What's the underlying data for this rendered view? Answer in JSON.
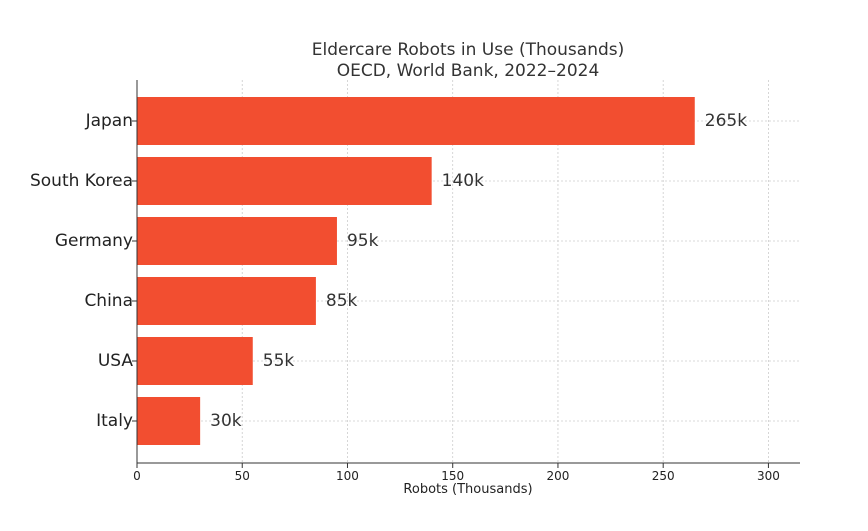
{
  "chart_data": {
    "type": "bar",
    "orientation": "horizontal",
    "title": "Eldercare Robots in Use (Thousands)",
    "subtitle": "OECD, World Bank, 2022–2024",
    "xlabel": "Robots (Thousands)",
    "ylabel": "",
    "categories": [
      "Japan",
      "South Korea",
      "Germany",
      "China",
      "USA",
      "Italy"
    ],
    "values": [
      265,
      140,
      95,
      85,
      55,
      30
    ],
    "data_labels": [
      "265k",
      "140k",
      "95k",
      "85k",
      "55k",
      "30k"
    ],
    "xlim": [
      0,
      315
    ],
    "x_ticks": [
      0,
      50,
      100,
      150,
      200,
      250,
      300
    ],
    "grid": true,
    "bar_color": "#f24e30",
    "legend": "none"
  }
}
